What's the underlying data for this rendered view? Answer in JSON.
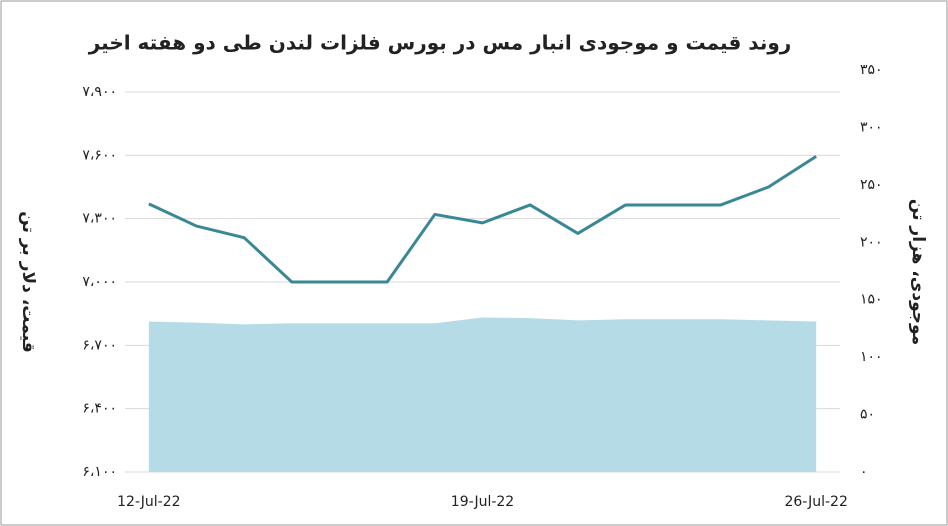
{
  "chart_data": {
    "type": "line-area",
    "title": "روند قیمت و موجودی انبار مس در بورس فلزات لندن طی دو هفته اخیر",
    "y_label": "قیمت، دلار بر تن",
    "y2_label": "موجودی، هزار تن",
    "categories": [
      "12-Jul-22",
      null,
      null,
      null,
      null,
      null,
      null,
      "19-Jul-22",
      null,
      null,
      null,
      null,
      null,
      null,
      "26-Jul-22"
    ],
    "series": [
      {
        "name": "قیمت",
        "kind": "line",
        "color": "#3a8797",
        "values": [
          7370,
          7265,
          7210,
          7000,
          7000,
          7000,
          7320,
          7280,
          7365,
          7230,
          7365,
          7365,
          7365,
          7450,
          7595
        ]
      },
      {
        "name": "موجودی",
        "kind": "area",
        "axis": "y2",
        "color": "#b5dce6",
        "values": [
          131,
          130,
          128.5,
          129.5,
          129.5,
          129.5,
          129.5,
          134.5,
          134,
          132,
          133,
          133,
          133,
          132,
          131
        ]
      }
    ],
    "ylim": [
      6100,
      7900
    ],
    "yticks": [
      {
        "value": 6100,
        "label": "۶،۱۰۰"
      },
      {
        "value": 6400,
        "label": "۶،۴۰۰"
      },
      {
        "value": 6700,
        "label": "۶،۷۰۰"
      },
      {
        "value": 7000,
        "label": "۷،۰۰۰"
      },
      {
        "value": 7300,
        "label": "۷،۳۰۰"
      },
      {
        "value": 7600,
        "label": "۷،۶۰۰"
      },
      {
        "value": 7900,
        "label": "۷،۹۰۰"
      }
    ],
    "y2lim": [
      0,
      350
    ],
    "y2ticks": [
      {
        "value": 0,
        "label": "۰"
      },
      {
        "value": 50,
        "label": "۵۰"
      },
      {
        "value": 100,
        "label": "۱۰۰"
      },
      {
        "value": 150,
        "label": "۱۵۰"
      },
      {
        "value": 200,
        "label": "۲۰۰"
      },
      {
        "value": 250,
        "label": "۲۵۰"
      },
      {
        "value": 300,
        "label": "۳۰۰"
      },
      {
        "value": 350,
        "label": "۳۵۰"
      }
    ],
    "grid": true
  }
}
